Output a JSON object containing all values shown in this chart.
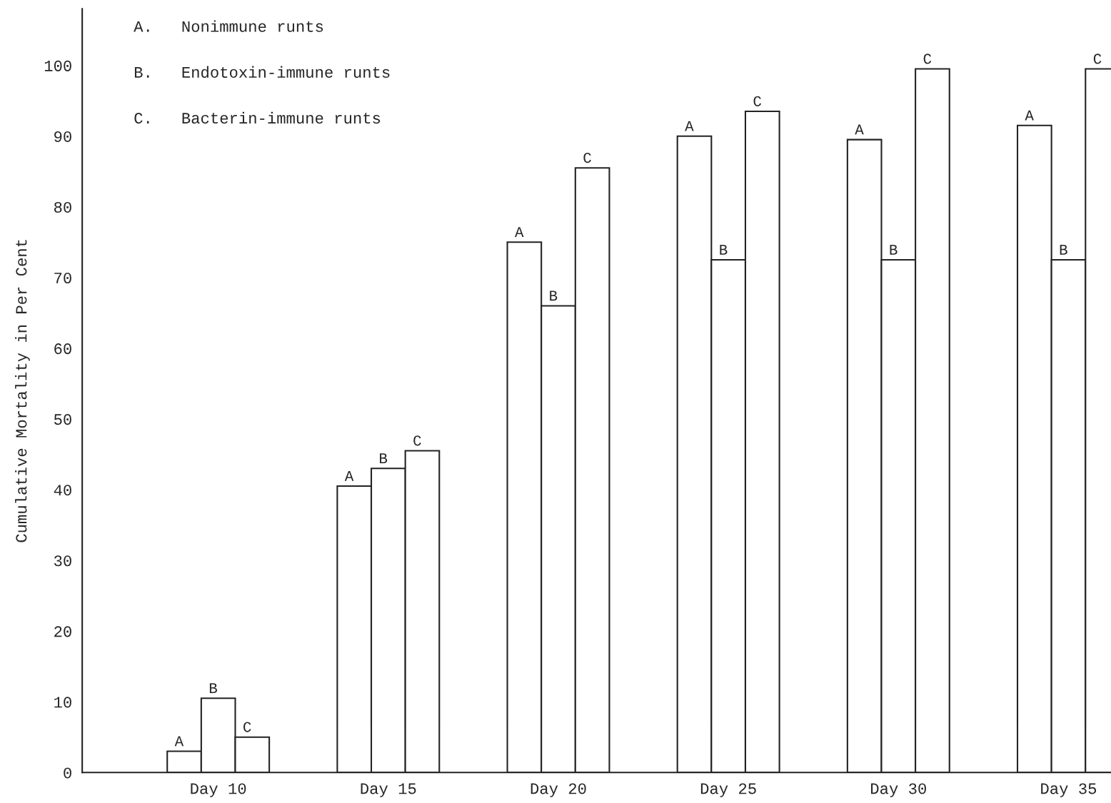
{
  "chart_data": {
    "type": "bar",
    "ylabel": "Cumulative Mortality in Per Cent",
    "categories": [
      "Day 10",
      "Day 15",
      "Day 20",
      "Day 25",
      "Day 30",
      "Day 35"
    ],
    "series": [
      {
        "name": "A",
        "color": "#222222",
        "values": [
          3,
          40.5,
          75,
          90,
          89.5,
          91.5
        ]
      },
      {
        "name": "B",
        "color": "#222222",
        "values": [
          10.5,
          43,
          66,
          72.5,
          72.5,
          72.5
        ]
      },
      {
        "name": "C",
        "color": "#222222",
        "values": [
          5,
          45.5,
          85.5,
          93.5,
          99.5,
          99.5
        ]
      }
    ],
    "ylim": [
      0,
      108
    ],
    "yticks": [
      0,
      10,
      20,
      30,
      40,
      50,
      60,
      70,
      80,
      90,
      100
    ],
    "annotations": [
      "A.   Nonimmune runts",
      "B.   Endotoxin-immune runts",
      "C.   Bacterin-immune runts"
    ],
    "grid": false,
    "legend": false
  }
}
